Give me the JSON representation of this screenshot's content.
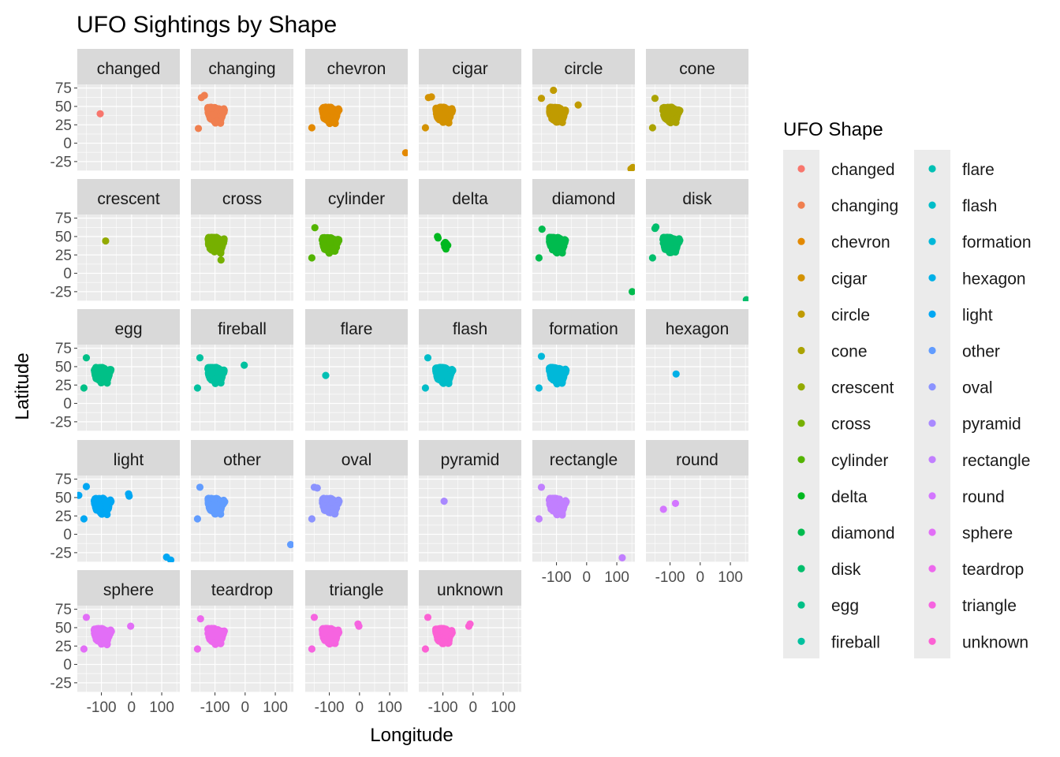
{
  "chart_data": {
    "type": "scatter",
    "title": "UFO Sightings by Shape",
    "xlabel": "Longitude",
    "ylabel": "Latitude",
    "xlim": [
      -180,
      160
    ],
    "ylim": [
      -38,
      80
    ],
    "x_ticks": [
      -100,
      0,
      100
    ],
    "x_tick_labels": [
      "-100",
      "0",
      "100"
    ],
    "y_ticks": [
      -25,
      0,
      25,
      50,
      75
    ],
    "y_tick_labels": [
      "-25",
      "0",
      "25",
      "50",
      "75"
    ],
    "grid": true,
    "panel_background": "#ebebeb",
    "strip_background": "#d9d9d9",
    "facet_columns": 6,
    "legend": {
      "title": "UFO Shape",
      "position": "right",
      "entries": [
        "changed",
        "changing",
        "chevron",
        "cigar",
        "circle",
        "cone",
        "crescent",
        "cross",
        "cylinder",
        "delta",
        "diamond",
        "disk",
        "egg",
        "fireball",
        "flare",
        "flash",
        "formation",
        "hexagon",
        "light",
        "other",
        "oval",
        "pyramid",
        "rectangle",
        "round",
        "sphere",
        "teardrop",
        "triangle",
        "unknown"
      ]
    },
    "series": [
      {
        "name": "changed",
        "color": "#F8766D",
        "points": [
          [
            -104,
            40
          ]
        ]
      },
      {
        "name": "changing",
        "color": "#F07F4F",
        "cluster": true,
        "points": [
          [
            -155,
            20
          ],
          [
            -145,
            62
          ],
          [
            -135,
            65
          ],
          [
            -76,
            44
          ]
        ]
      },
      {
        "name": "chevron",
        "color": "#E38900",
        "cluster": true,
        "points": [
          [
            -158,
            21
          ],
          [
            153,
            -13
          ]
        ]
      },
      {
        "name": "cigar",
        "color": "#D39200",
        "cluster": true,
        "points": [
          [
            -158,
            21
          ],
          [
            -148,
            62
          ],
          [
            -138,
            63
          ]
        ]
      },
      {
        "name": "circle",
        "color": "#C09B00",
        "cluster": true,
        "points": [
          [
            -150,
            61
          ],
          [
            -110,
            72
          ],
          [
            -28,
            52
          ],
          [
            147,
            -35
          ],
          [
            153,
            -33
          ]
        ]
      },
      {
        "name": "cone",
        "color": "#ABA300",
        "cluster": true,
        "points": [
          [
            -158,
            21
          ],
          [
            -150,
            61
          ]
        ]
      },
      {
        "name": "crescent",
        "color": "#93AA00",
        "points": [
          [
            -86,
            44
          ]
        ]
      },
      {
        "name": "cross",
        "color": "#76B000",
        "cluster": true,
        "points": [
          [
            -80,
            18
          ]
        ]
      },
      {
        "name": "cylinder",
        "color": "#53B400",
        "cluster": true,
        "points": [
          [
            -158,
            21
          ],
          [
            -148,
            62
          ]
        ]
      },
      {
        "name": "delta",
        "color": "#00B81F",
        "points": [
          [
            -118,
            50
          ],
          [
            -116,
            48
          ],
          [
            -96,
            40
          ],
          [
            -92,
            42
          ],
          [
            -88,
            40
          ],
          [
            -94,
            36
          ],
          [
            -90,
            33
          ],
          [
            -84,
            38
          ]
        ]
      },
      {
        "name": "diamond",
        "color": "#00BB4E",
        "cluster": true,
        "points": [
          [
            -158,
            21
          ],
          [
            -148,
            60
          ],
          [
            151,
            -25
          ]
        ]
      },
      {
        "name": "disk",
        "color": "#00BE6C",
        "cluster": true,
        "points": [
          [
            -158,
            21
          ],
          [
            -150,
            61
          ],
          [
            -147,
            63
          ],
          [
            153,
            -36
          ]
        ]
      },
      {
        "name": "egg",
        "color": "#00C087",
        "cluster": true,
        "points": [
          [
            -158,
            21
          ],
          [
            -150,
            62
          ]
        ]
      },
      {
        "name": "fireball",
        "color": "#00C19F",
        "cluster": true,
        "points": [
          [
            -158,
            21
          ],
          [
            -150,
            62
          ],
          [
            -3,
            52
          ]
        ]
      },
      {
        "name": "flare",
        "color": "#00C0B4",
        "points": [
          [
            -112,
            38
          ]
        ]
      },
      {
        "name": "flash",
        "color": "#00BDC8",
        "cluster": true,
        "points": [
          [
            -158,
            21
          ],
          [
            -150,
            62
          ]
        ]
      },
      {
        "name": "formation",
        "color": "#00B8D9",
        "cluster": true,
        "points": [
          [
            -158,
            21
          ],
          [
            -150,
            64
          ]
        ]
      },
      {
        "name": "hexagon",
        "color": "#00B0E7",
        "points": [
          [
            -80,
            40
          ]
        ]
      },
      {
        "name": "light",
        "color": "#00A7F3",
        "cluster": true,
        "points": [
          [
            -158,
            21
          ],
          [
            -175,
            53
          ],
          [
            -150,
            65
          ],
          [
            -10,
            55
          ],
          [
            -8,
            52
          ],
          [
            116,
            -31
          ],
          [
            130,
            -35
          ]
        ]
      },
      {
        "name": "other",
        "color": "#619CFF",
        "cluster": true,
        "points": [
          [
            -158,
            21
          ],
          [
            -150,
            64
          ],
          [
            151,
            -14
          ]
        ]
      },
      {
        "name": "oval",
        "color": "#8B93FF",
        "cluster": true,
        "points": [
          [
            -158,
            21
          ],
          [
            -150,
            64
          ],
          [
            -140,
            63
          ]
        ]
      },
      {
        "name": "pyramid",
        "color": "#A989FF",
        "points": [
          [
            -96,
            45
          ]
        ]
      },
      {
        "name": "rectangle",
        "color": "#C17FFF",
        "cluster": true,
        "points": [
          [
            -158,
            21
          ],
          [
            -150,
            64
          ],
          [
            118,
            -32
          ]
        ]
      },
      {
        "name": "round",
        "color": "#D376FF",
        "points": [
          [
            -122,
            34
          ],
          [
            -82,
            42
          ]
        ]
      },
      {
        "name": "sphere",
        "color": "#E26EF7",
        "cluster": true,
        "points": [
          [
            -158,
            21
          ],
          [
            -150,
            64
          ],
          [
            -3,
            52
          ]
        ]
      },
      {
        "name": "teardrop",
        "color": "#ED68ED",
        "cluster": true,
        "points": [
          [
            -158,
            21
          ],
          [
            -148,
            62
          ]
        ]
      },
      {
        "name": "triangle",
        "color": "#F664E0",
        "cluster": true,
        "points": [
          [
            -158,
            21
          ],
          [
            -150,
            64
          ],
          [
            -2,
            52
          ],
          [
            -5,
            55
          ]
        ]
      },
      {
        "name": "unknown",
        "color": "#FC61D4",
        "cluster": true,
        "points": [
          [
            -158,
            21
          ],
          [
            -150,
            64
          ],
          [
            -14,
            52
          ],
          [
            -10,
            55
          ]
        ]
      }
    ]
  }
}
